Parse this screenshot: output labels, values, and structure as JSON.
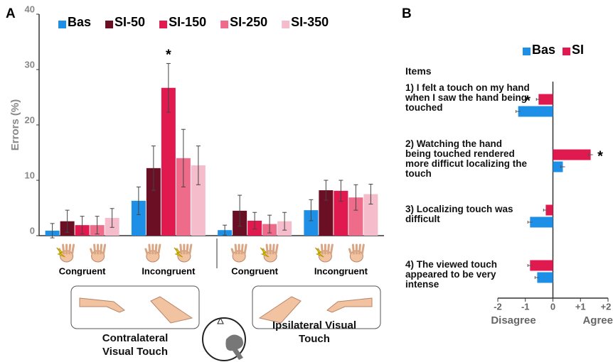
{
  "chart_data": [
    {
      "type": "bar",
      "panel": "A",
      "ylabel": "Errors (%)",
      "categories": [
        "Congruent",
        "Incongruent",
        "Congruent",
        "Incongruent"
      ],
      "series": [
        {
          "name": "Bas",
          "color": "#1e8fe6",
          "values": [
            0.9,
            6.3,
            1.0,
            4.6
          ],
          "errors": [
            1.3,
            2.5,
            0.9,
            1.9
          ]
        },
        {
          "name": "SI-50",
          "color": "#6b0f24",
          "values": [
            2.6,
            12.2,
            4.5,
            8.2
          ],
          "errors": [
            2.0,
            4.0,
            2.8,
            1.8
          ]
        },
        {
          "name": "SI-150",
          "color": "#e0194f",
          "values": [
            1.9,
            26.7,
            2.7,
            8.1
          ],
          "errors": [
            1.6,
            4.4,
            1.5,
            1.9
          ]
        },
        {
          "name": "SI-250",
          "color": "#ee6b8a",
          "values": [
            1.9,
            14.0,
            2.1,
            6.9
          ],
          "errors": [
            1.6,
            5.2,
            1.6,
            2.3
          ]
        },
        {
          "name": "SI-350",
          "color": "#f5bccb",
          "values": [
            3.2,
            12.7,
            2.6,
            7.5
          ],
          "errors": [
            1.7,
            3.5,
            1.6,
            1.8
          ]
        }
      ],
      "ylim": [
        0,
        40
      ],
      "yticks": [
        0,
        10,
        20,
        30,
        40
      ],
      "annotations": [
        "*"
      ],
      "condition_labels": [
        "Contralateral Visual Touch",
        "Ipsilateral Visual Touch"
      ]
    },
    {
      "type": "bar",
      "panel": "B",
      "horizontal": true,
      "items_title": "Items",
      "categories": [
        "1) I felt a touch on my hand when I saw the hand being touched",
        "2) Watching the hand being touched rendered more difficut localizing the touch",
        "3) Localizing touch was difficult",
        "4) The viewed touch appeared to be very intense"
      ],
      "series": [
        {
          "name": "Bas",
          "color": "#1e8fe6",
          "values": [
            -1.26,
            0.36,
            -0.83,
            -0.57
          ],
          "errors": [
            0.08,
            0.08,
            0.08,
            0.08
          ]
        },
        {
          "name": "SI",
          "color": "#e0194f",
          "values": [
            -0.52,
            1.37,
            -0.26,
            -0.83
          ],
          "errors": [
            0.08,
            0.08,
            0.08,
            0.08
          ]
        }
      ],
      "xlim": [
        -2,
        2
      ],
      "xticks": [
        -2,
        -1,
        0,
        {
          "value": 1,
          "label": "+1"
        },
        {
          "value": 2,
          "label": "+2"
        }
      ],
      "xlabel_left": "Disagree",
      "xlabel_right": "Agree",
      "annotations": [
        "*",
        "*"
      ]
    }
  ]
}
